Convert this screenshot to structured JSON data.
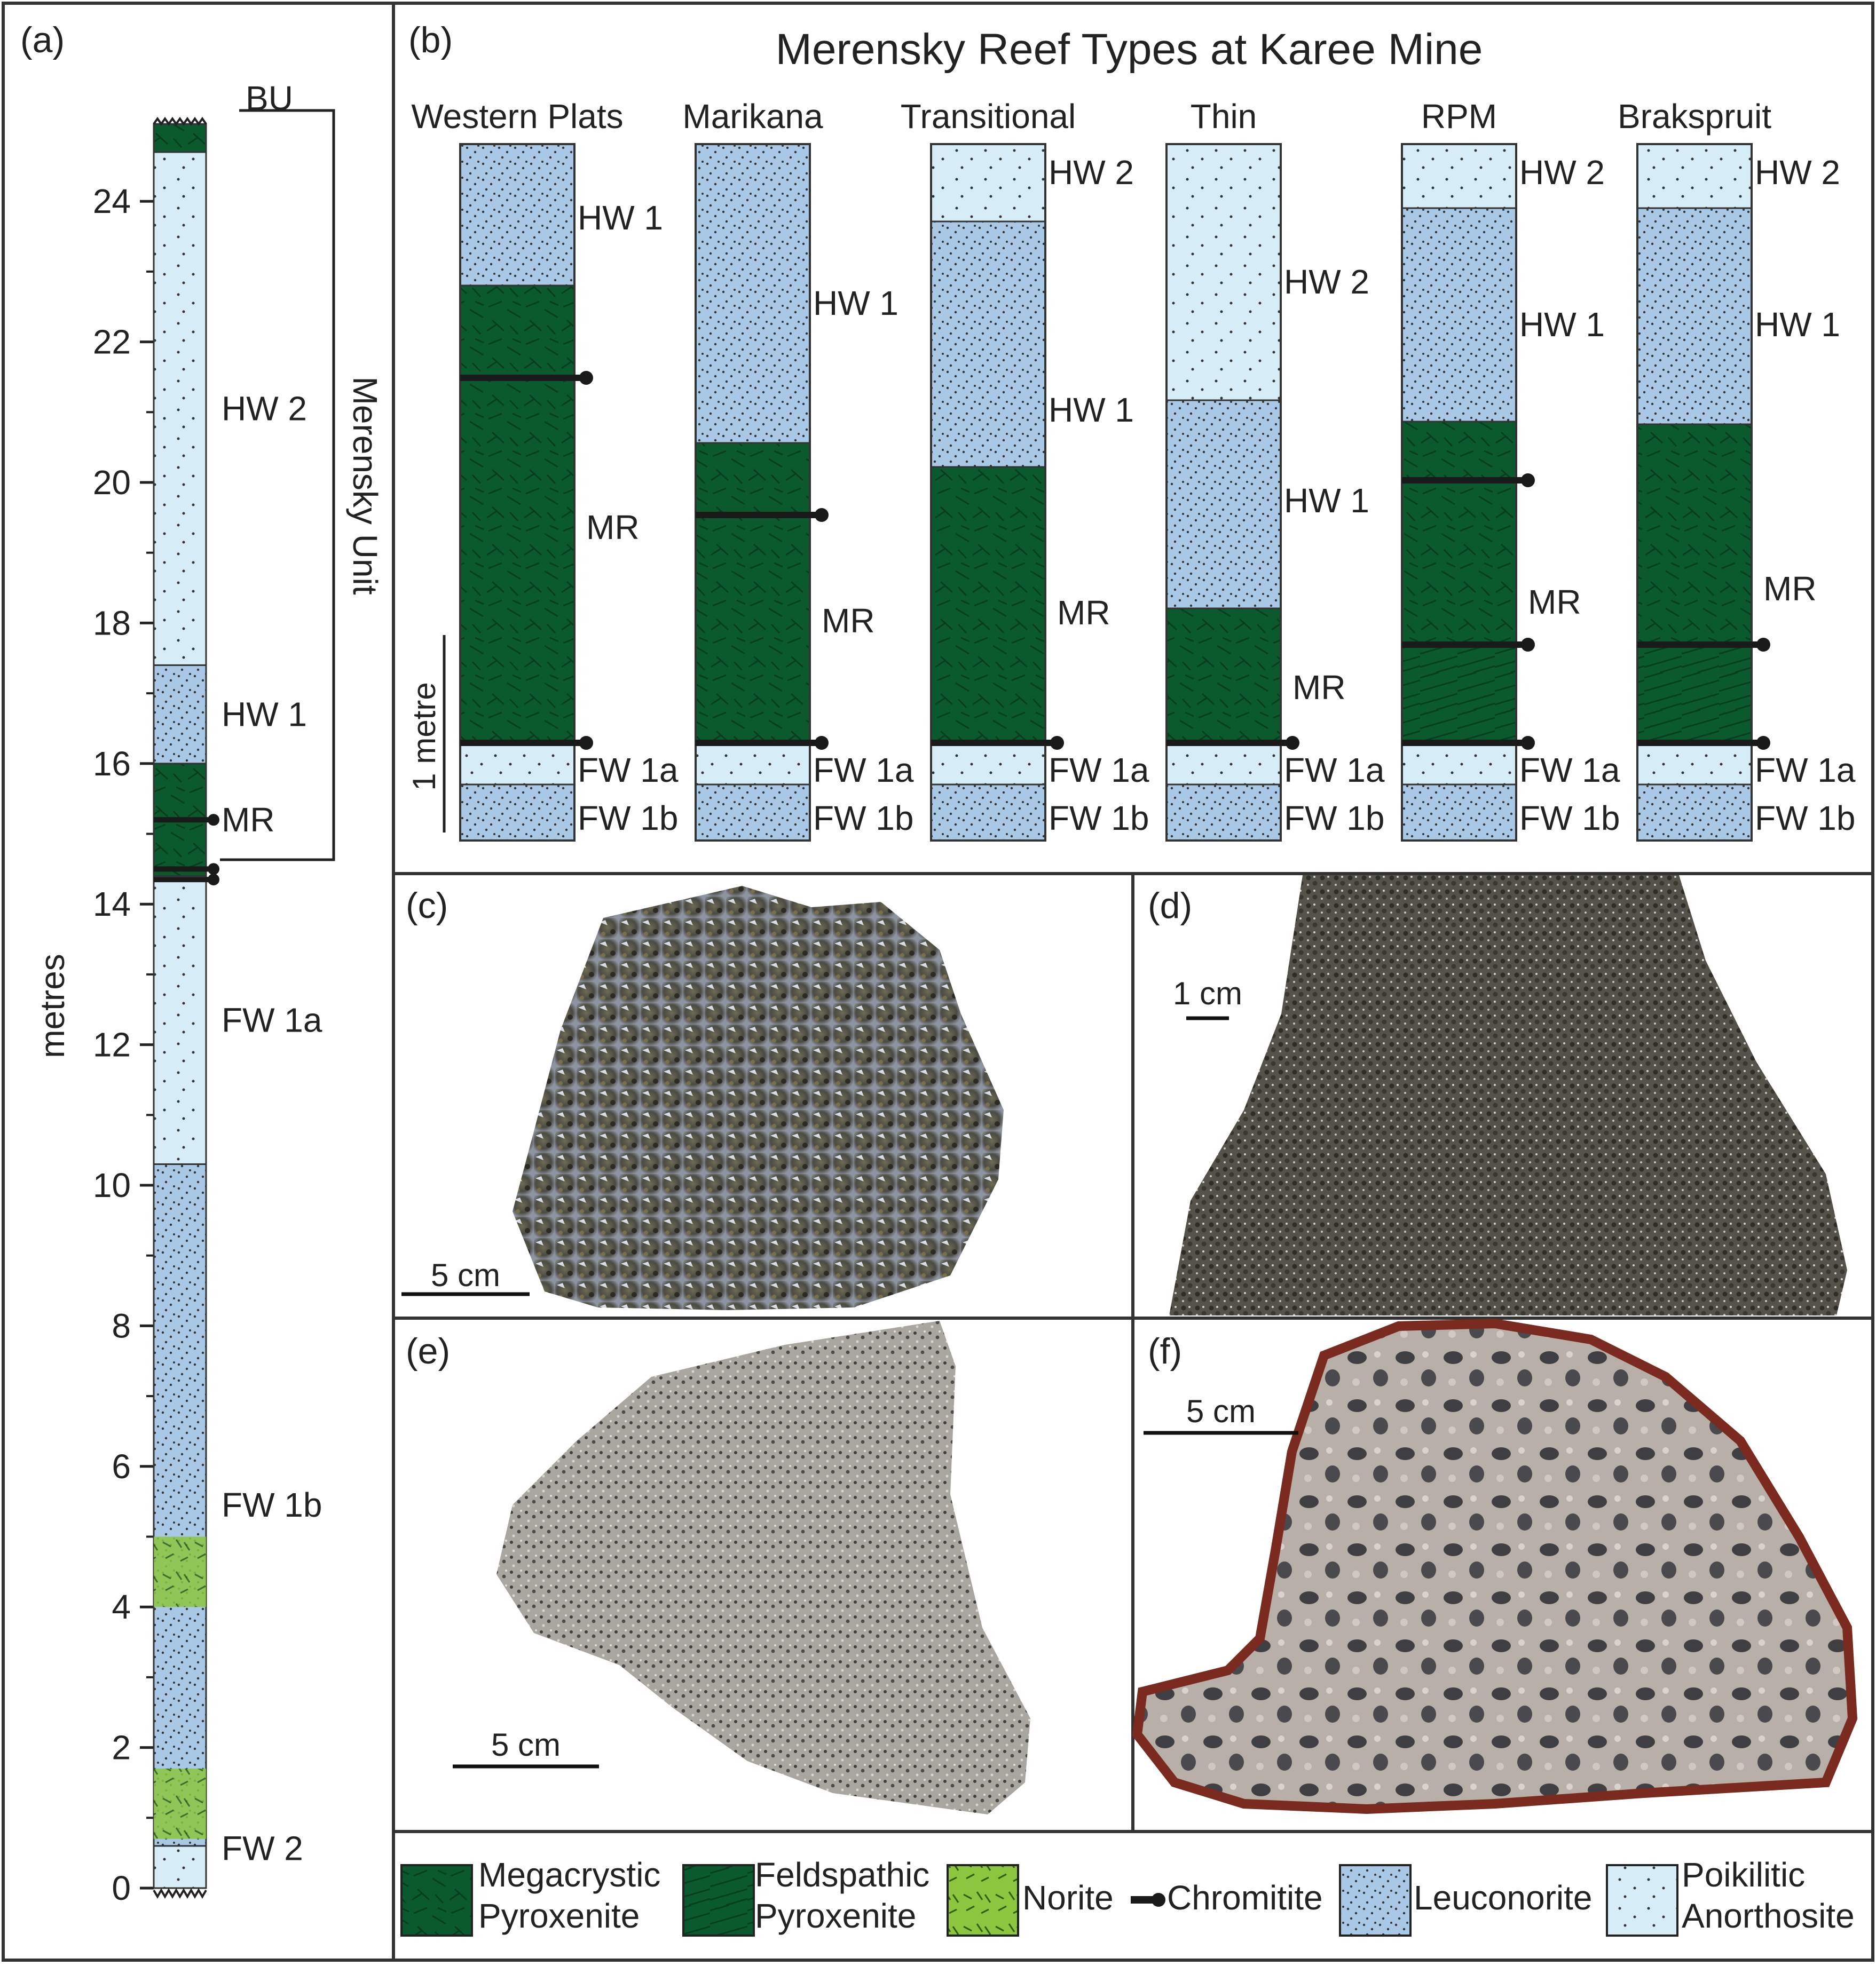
{
  "colors": {
    "pyroxenite": "#0b5a2e",
    "norite": "#8cc63f",
    "leuconorite": "#a9c8e6",
    "anorthosite": "#d6edf7",
    "chromitite": "#1a1a1a",
    "frame": "#333333"
  },
  "panel_a": {
    "label": "(a)",
    "axis_label": "metres",
    "ticks": [
      "0",
      "2",
      "4",
      "6",
      "8",
      "10",
      "12",
      "14",
      "16",
      "18",
      "20",
      "22",
      "24"
    ],
    "units": [
      {
        "name": "FW 2",
        "from": 0,
        "to": 0.6,
        "lith": "anorthosite"
      },
      {
        "name": "FW 1b",
        "from": 0.6,
        "to": 10.3,
        "lith": "leuconorite"
      },
      {
        "name": "FW 1a",
        "from": 10.3,
        "to": 14.4,
        "lith": "anorthosite"
      },
      {
        "name": "MR",
        "from": 14.4,
        "to": 16.0,
        "lith": "pyroxenite"
      },
      {
        "name": "HW 1",
        "from": 16.0,
        "to": 17.4,
        "lith": "leuconorite"
      },
      {
        "name": "HW 2",
        "from": 17.4,
        "to": 24.7,
        "lith": "anorthosite"
      },
      {
        "name": "BU",
        "from": 24.7,
        "to": 25.1,
        "lith": "pyroxenite"
      }
    ],
    "norite_lenses_m": [
      4.5,
      1.2
    ],
    "chromitite_m": [
      15.2,
      14.5,
      14.35
    ],
    "bracket_label": "Merensky Unit"
  },
  "panel_b": {
    "label": "(b)",
    "title": "Merensky Reef Types at Karee Mine",
    "scale_label": "1 metre",
    "columns": [
      {
        "name": "Western Plats",
        "units": [
          {
            "name": "FW 1b",
            "lith": "leuconorite"
          },
          {
            "name": "FW 1a",
            "lith": "anorthosite"
          },
          {
            "name": "MR",
            "lith": "pyroxenite"
          },
          {
            "name": "HW 1",
            "lith": "leuconorite"
          }
        ]
      },
      {
        "name": "Marikana",
        "units": [
          {
            "name": "FW 1b",
            "lith": "leuconorite"
          },
          {
            "name": "FW 1a",
            "lith": "anorthosite"
          },
          {
            "name": "MR",
            "lith": "pyroxenite"
          },
          {
            "name": "HW 1",
            "lith": "leuconorite"
          }
        ]
      },
      {
        "name": "Transitional",
        "units": [
          {
            "name": "FW 1b",
            "lith": "leuconorite"
          },
          {
            "name": "FW 1a",
            "lith": "anorthosite"
          },
          {
            "name": "MR",
            "lith": "pyroxenite"
          },
          {
            "name": "HW 1",
            "lith": "leuconorite"
          },
          {
            "name": "HW 2",
            "lith": "anorthosite"
          }
        ]
      },
      {
        "name": "Thin",
        "units": [
          {
            "name": "FW 1b",
            "lith": "leuconorite"
          },
          {
            "name": "FW 1a",
            "lith": "anorthosite"
          },
          {
            "name": "MR",
            "lith": "pyroxenite"
          },
          {
            "name": "HW 1",
            "lith": "leuconorite"
          },
          {
            "name": "HW 2",
            "lith": "anorthosite"
          }
        ]
      },
      {
        "name": "RPM",
        "units": [
          {
            "name": "FW 1b",
            "lith": "leuconorite"
          },
          {
            "name": "FW 1a",
            "lith": "anorthosite"
          },
          {
            "name": "MR",
            "lith": "pyroxenite"
          },
          {
            "name": "HW 1",
            "lith": "leuconorite"
          },
          {
            "name": "HW 2",
            "lith": "anorthosite"
          }
        ]
      },
      {
        "name": "Brakspruit",
        "units": [
          {
            "name": "FW 1b",
            "lith": "leuconorite"
          },
          {
            "name": "FW 1a",
            "lith": "anorthosite"
          },
          {
            "name": "MR",
            "lith": "pyroxenite"
          },
          {
            "name": "HW 1",
            "lith": "leuconorite"
          },
          {
            "name": "HW 2",
            "lith": "anorthosite"
          }
        ]
      }
    ]
  },
  "photos": {
    "c": {
      "label": "(c)",
      "scale": "5 cm"
    },
    "d": {
      "label": "(d)",
      "scale": "1 cm"
    },
    "e": {
      "label": "(e)",
      "scale": "5 cm"
    },
    "f": {
      "label": "(f)",
      "scale": "5 cm"
    }
  },
  "legend": {
    "megacrystic_1": "Megacrystic",
    "megacrystic_2": "Pyroxenite",
    "feldspathic_1": "Feldspathic",
    "feldspathic_2": "Pyroxenite",
    "norite": "Norite",
    "chromitite": "Chromitite",
    "leuconorite": "Leuconorite",
    "anorthosite_1": "Poikilitic",
    "anorthosite_2": "Anorthosite"
  }
}
